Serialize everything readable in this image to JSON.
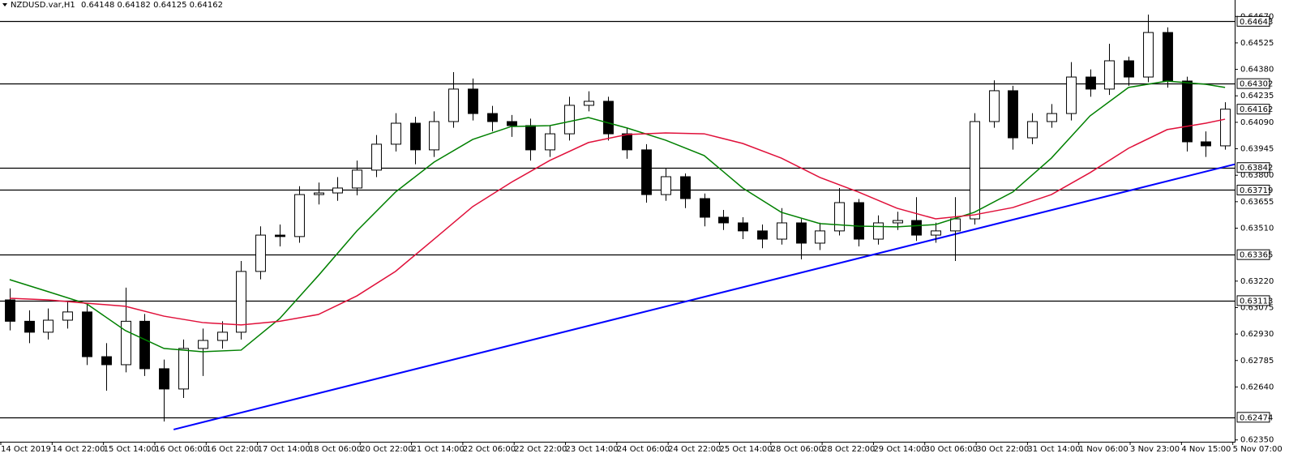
{
  "chart_data": {
    "type": "candlestick",
    "title": "NZDUSD.var,H1",
    "header_ohlc": [
      0.64148,
      0.64182,
      0.64125,
      0.64162
    ],
    "open": [
      0.63117,
      0.63,
      0.6294,
      0.63006,
      0.63051,
      0.62806,
      0.62762,
      0.63,
      0.6274,
      0.62629,
      0.62851,
      0.62895,
      0.6294,
      0.63273,
      0.63472,
      0.63464,
      0.63694,
      0.63703,
      0.6373,
      0.63828,
      0.6397,
      0.64085,
      0.63939,
      0.64094,
      0.64272,
      0.64138,
      0.64094,
      0.64072,
      0.63939,
      0.64027,
      0.64183,
      0.64205,
      0.64027,
      0.63939,
      0.63694,
      0.63792,
      0.63672,
      0.6357,
      0.63539,
      0.63495,
      0.6345,
      0.63539,
      0.63428,
      0.63495,
      0.6365,
      0.6345,
      0.63539,
      0.63552,
      0.63472,
      0.63495,
      0.63561,
      0.64094,
      0.64263,
      0.64005,
      0.64094,
      0.64138,
      0.64338,
      0.64272,
      0.64427,
      0.64338,
      0.64582,
      0.64316,
      0.63983,
      0.63961
    ],
    "high": [
      0.6318,
      0.6306,
      0.6307,
      0.6311,
      0.6309,
      0.6288,
      0.63184,
      0.6304,
      0.6279,
      0.629,
      0.6296,
      0.63,
      0.6333,
      0.6352,
      0.6353,
      0.6374,
      0.6376,
      0.6379,
      0.6388,
      0.6402,
      0.6414,
      0.6412,
      0.6415,
      0.64365,
      0.6433,
      0.6418,
      0.6413,
      0.6411,
      0.6407,
      0.6423,
      0.6426,
      0.6423,
      0.6406,
      0.6397,
      0.6384,
      0.6381,
      0.637,
      0.6361,
      0.6357,
      0.6353,
      0.6362,
      0.6356,
      0.6354,
      0.6373,
      0.6367,
      0.6358,
      0.636,
      0.6368,
      0.6354,
      0.6368,
      0.6414,
      0.6432,
      0.6429,
      0.6414,
      0.6419,
      0.6442,
      0.6438,
      0.6452,
      0.6445,
      0.6468,
      0.6461,
      0.6434,
      0.6404,
      0.642
    ],
    "low": [
      0.6295,
      0.6288,
      0.629,
      0.6296,
      0.6276,
      0.6262,
      0.6272,
      0.627,
      0.62451,
      0.6258,
      0.627,
      0.6285,
      0.629,
      0.6323,
      0.6341,
      0.6343,
      0.6364,
      0.6366,
      0.6369,
      0.6379,
      0.6393,
      0.6386,
      0.639,
      0.6406,
      0.641,
      0.6404,
      0.6401,
      0.6388,
      0.639,
      0.6399,
      0.6415,
      0.6399,
      0.6389,
      0.6365,
      0.6366,
      0.6362,
      0.6352,
      0.635,
      0.6345,
      0.634,
      0.6342,
      0.63339,
      0.6339,
      0.6347,
      0.6341,
      0.6342,
      0.635,
      0.6344,
      0.6343,
      0.6333,
      0.6353,
      0.6406,
      0.6394,
      0.6397,
      0.6406,
      0.641,
      0.6423,
      0.6424,
      0.6429,
      0.6431,
      0.6428,
      0.6393,
      0.639,
      0.6394
    ],
    "close": [
      0.63,
      0.6294,
      0.63006,
      0.63051,
      0.62806,
      0.62762,
      0.63,
      0.6274,
      0.62629,
      0.62851,
      0.62895,
      0.6294,
      0.63273,
      0.63472,
      0.63464,
      0.63694,
      0.63703,
      0.6373,
      0.63828,
      0.6397,
      0.64085,
      0.63939,
      0.64094,
      0.64272,
      0.64138,
      0.64094,
      0.64072,
      0.63939,
      0.64027,
      0.64183,
      0.64205,
      0.64027,
      0.63939,
      0.63694,
      0.63792,
      0.63672,
      0.6357,
      0.63539,
      0.63495,
      0.6345,
      0.63539,
      0.63428,
      0.63495,
      0.6365,
      0.6345,
      0.63539,
      0.63552,
      0.63472,
      0.63495,
      0.63561,
      0.64094,
      0.64263,
      0.64005,
      0.64094,
      0.64138,
      0.64338,
      0.64272,
      0.64427,
      0.64338,
      0.64582,
      0.64316,
      0.63983,
      0.63961,
      0.64162
    ],
    "up_color": "#ffffff",
    "down_color": "#000000",
    "outline_color": "#000000",
    "xlim": [
      -0.5,
      63.5
    ],
    "ylim": [
      0.6234,
      0.6476
    ],
    "yticks": [
      {
        "value": 0.6467,
        "label": "0.64670"
      },
      0.64525,
      {
        "value": 0.6438,
        "label": "0.64380"
      },
      0.64235,
      {
        "value": 0.6409,
        "label": "0.64090"
      },
      0.63945,
      {
        "value": 0.638,
        "label": "0.63800"
      },
      0.63655,
      {
        "value": 0.6351,
        "label": "0.63510"
      },
      {
        "value": 0.6322,
        "label": "0.63220"
      },
      0.63075,
      {
        "value": 0.6293,
        "label": "0.62930"
      },
      0.62785,
      {
        "value": 0.6264,
        "label": "0.62640"
      },
      {
        "value": 0.6235,
        "label": "0.62350"
      }
    ],
    "xtick_labels": [
      "14 Oct 2019",
      "14 Oct 22:00",
      "15 Oct 14:00",
      "16 Oct 06:00",
      "16 Oct 22:00",
      "17 Oct 14:00",
      "18 Oct 06:00",
      "20 Oct 22:00",
      "21 Oct 14:00",
      "22 Oct 06:00",
      "22 Oct 22:00",
      "23 Oct 14:00",
      "24 Oct 06:00",
      "24 Oct 22:00",
      "25 Oct 14:00",
      "28 Oct 06:00",
      "28 Oct 22:00",
      "29 Oct 14:00",
      "30 Oct 06:00",
      "30 Oct 22:00",
      "31 Oct 14:00",
      "1 Nov 06:00",
      "3 Nov 23:00",
      "4 Nov 15:00",
      "5 Nov 07:00"
    ],
    "moving_averages": [
      {
        "color": "#008000",
        "x": [
          0,
          2,
          4,
          6,
          8,
          10,
          12,
          14,
          16,
          18,
          20,
          22,
          24,
          26,
          28,
          30,
          32,
          34,
          36,
          38,
          40,
          42,
          44,
          46,
          48,
          50,
          52,
          54,
          56,
          58,
          60,
          62,
          63
        ],
        "values": [
          0.63228,
          0.63162,
          0.63095,
          0.62949,
          0.62851,
          0.62833,
          0.62842,
          0.63015,
          0.6325,
          0.63495,
          0.63708,
          0.63872,
          0.63996,
          0.64067,
          0.64072,
          0.64116,
          0.64059,
          0.63992,
          0.63908,
          0.6373,
          0.63597,
          0.63535,
          0.63521,
          0.63517,
          0.6353,
          0.63597,
          0.63708,
          0.63894,
          0.64125,
          0.64281,
          0.64316,
          0.64298,
          0.64281
        ]
      },
      {
        "color": "#e0103a",
        "x": [
          0,
          2,
          4,
          6,
          8,
          10,
          12,
          14,
          16,
          18,
          20,
          22,
          24,
          26,
          28,
          30,
          32,
          34,
          36,
          38,
          40,
          42,
          44,
          46,
          48,
          50,
          52,
          54,
          56,
          58,
          60,
          62,
          63
        ],
        "values": [
          0.63126,
          0.63117,
          0.63099,
          0.63082,
          0.63028,
          0.62993,
          0.6298,
          0.63,
          0.63037,
          0.63139,
          0.63273,
          0.6345,
          0.63628,
          0.63761,
          0.63881,
          0.63979,
          0.64023,
          0.64032,
          0.64027,
          0.63974,
          0.63894,
          0.63788,
          0.63708,
          0.63619,
          0.63561,
          0.63583,
          0.63623,
          0.63694,
          0.63814,
          0.63948,
          0.6405,
          0.64085,
          0.64107
        ]
      }
    ],
    "trendline": {
      "color": "#0000ff",
      "x": [
        8.5,
        63.5
      ],
      "values": [
        0.62407,
        0.6386
      ]
    },
    "levels": [
      0.64643,
      0.64302,
      0.63842,
      0.63719,
      0.63365,
      0.63113,
      0.62474
    ],
    "level_color": "#000000",
    "bid": 0.64162
  }
}
